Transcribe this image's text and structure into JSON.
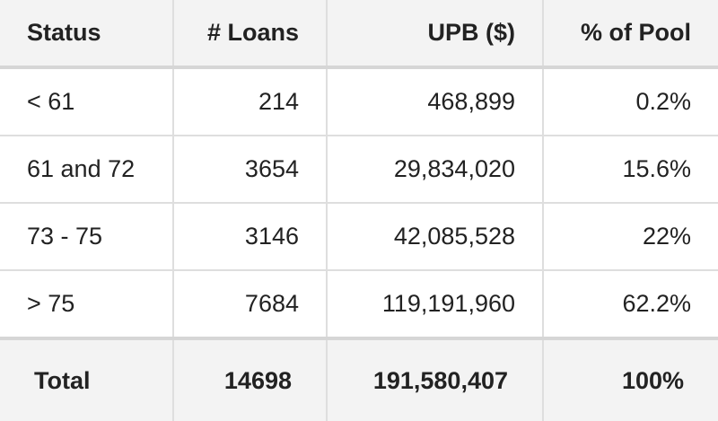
{
  "table": {
    "headers": [
      "Status",
      "# Loans",
      "UPB ($)",
      "% of Pool"
    ],
    "rows": [
      [
        "< 61",
        "214",
        "468,899",
        "0.2%"
      ],
      [
        "61 and 72",
        "3654",
        "29,834,020",
        "15.6%"
      ],
      [
        "73 - 75",
        "3146",
        "42,085,528",
        "22%"
      ],
      [
        "> 75",
        "7684",
        "119,191,960",
        "62.2%"
      ]
    ],
    "total": [
      "Total",
      "14698",
      "191,580,407",
      "100%"
    ]
  }
}
